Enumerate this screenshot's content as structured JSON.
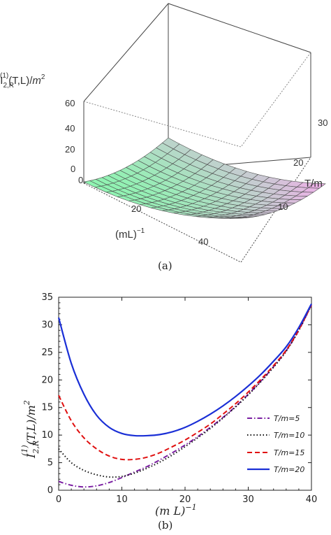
{
  "chart_data": [
    {
      "type": "surface",
      "panel_label": "(a)",
      "zlabel": "I_{2,R}^{(1)}(T,L)/m^2",
      "zlabel_parts": {
        "base": "I",
        "sub": "2,R",
        "sup": "(1)",
        "args": "(T,L)/",
        "m": "m",
        "m_sup": "2"
      },
      "xlabel": "(mL)",
      "xlabel_sup": "−1",
      "ylabel": "T/m",
      "xlim": [
        0,
        50
      ],
      "ylim": [
        0,
        35
      ],
      "zlim": [
        0,
        60
      ],
      "x_ticks": [
        "0",
        "20",
        "40"
      ],
      "y_ticks": [
        "10",
        "20",
        "30"
      ],
      "z_ticks": [
        "0",
        "20",
        "40",
        "60"
      ],
      "surface_color_low": "#8df5b0",
      "surface_color_high": "#f0a8ee",
      "mesh_color": "#555555"
    },
    {
      "type": "line",
      "panel_label": "(b)",
      "xlabel": "(m L)",
      "xlabel_sup": "−1",
      "ylabel": "I_{2,R}^{(1)}(T,L)/m^2",
      "ylabel_parts": {
        "base": "I",
        "sub": "2,R",
        "sup": "(1)",
        "args": "(T,L)/m",
        "m_sup": "2"
      },
      "xlim": [
        0,
        40
      ],
      "ylim": [
        0,
        35
      ],
      "x_ticks": [
        "0",
        "10",
        "20",
        "30",
        "40"
      ],
      "y_ticks": [
        "0",
        "5",
        "10",
        "15",
        "20",
        "25",
        "30",
        "35"
      ],
      "legend_position": "right",
      "x": [
        0,
        2,
        4,
        6,
        8,
        10,
        12,
        14,
        16,
        18,
        20,
        22,
        24,
        26,
        28,
        30,
        32,
        34,
        36,
        38,
        40
      ],
      "series": [
        {
          "name": "T/m=5",
          "color": "#7b1fa2",
          "dash": "dashdot",
          "values": [
            1.6,
            0.9,
            0.6,
            0.8,
            1.4,
            2.3,
            3.3,
            4.3,
            5.5,
            6.8,
            8.2,
            9.7,
            11.4,
            13.2,
            15.2,
            17.4,
            19.8,
            22.4,
            25.3,
            29.0,
            33.6
          ]
        },
        {
          "name": "T/m=10",
          "color": "#111111",
          "dash": "dotted",
          "values": [
            7.5,
            5.0,
            3.6,
            2.8,
            2.4,
            2.5,
            3.1,
            4.0,
            5.1,
            6.4,
            7.9,
            9.5,
            11.2,
            13.1,
            15.1,
            17.3,
            19.7,
            22.3,
            25.2,
            29.0,
            33.6
          ]
        },
        {
          "name": "T/m=15",
          "color": "#e01010",
          "dash": "dashed",
          "values": [
            17.2,
            12.6,
            9.5,
            7.5,
            6.2,
            5.6,
            5.6,
            6.0,
            6.8,
            7.9,
            9.1,
            10.5,
            12.0,
            13.8,
            15.7,
            17.8,
            20.1,
            22.6,
            25.4,
            29.1,
            33.6
          ]
        },
        {
          "name": "T/m=20",
          "color": "#1a2fd6",
          "dash": "solid",
          "values": [
            31.3,
            23.0,
            17.4,
            13.6,
            11.4,
            10.3,
            9.9,
            9.9,
            10.1,
            10.6,
            11.4,
            12.5,
            13.8,
            15.3,
            17.0,
            18.9,
            21.0,
            23.4,
            26.0,
            29.5,
            33.8
          ]
        }
      ]
    }
  ]
}
